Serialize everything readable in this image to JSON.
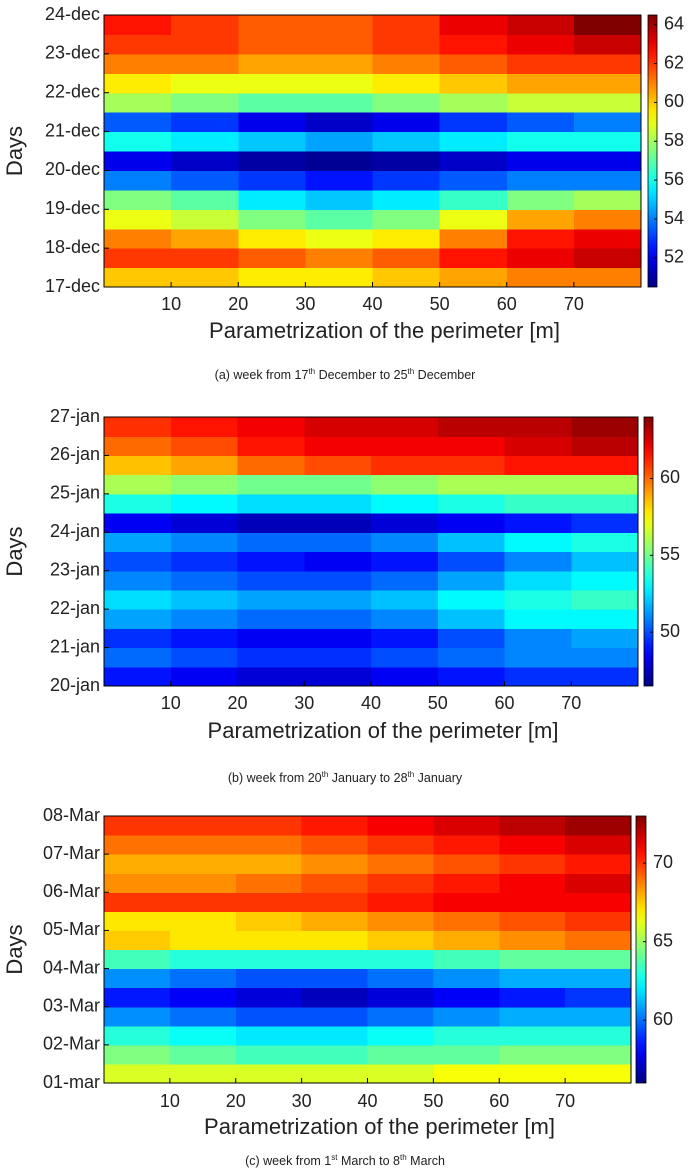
{
  "chart_data": [
    {
      "type": "heatmap",
      "xlabel": "Parametrization of the perimeter [m]",
      "ylabel": "Days",
      "caption": [
        "(a)  week from 17",
        "th",
        " December to 25",
        "th",
        " December"
      ],
      "colormap": "jet",
      "xlim": [
        0,
        80
      ],
      "xticks": [
        10,
        20,
        30,
        40,
        50,
        60,
        70
      ],
      "ylim": [
        0,
        7
      ],
      "yticks": [
        {
          "value": 0,
          "label": "17-dec"
        },
        {
          "value": 1,
          "label": "18-dec"
        },
        {
          "value": 2,
          "label": "19-dec"
        },
        {
          "value": 3,
          "label": "20-dec"
        },
        {
          "value": 4,
          "label": "21-dec"
        },
        {
          "value": 5,
          "label": "22-dec"
        },
        {
          "value": 6,
          "label": "23-dec"
        },
        {
          "value": 7,
          "label": "24-dec"
        }
      ],
      "xbins": [
        0,
        10,
        20,
        30,
        40,
        50,
        60,
        70,
        80
      ],
      "ybins": [
        0,
        0.5,
        1,
        1.5,
        2,
        2.5,
        3,
        3.5,
        4,
        4.5,
        5,
        5.5,
        6,
        6.5,
        7
      ],
      "clim": [
        50.5,
        64.5
      ],
      "cticks": [
        52,
        54,
        56,
        58,
        60,
        62,
        64
      ],
      "values": [
        [
          60,
          60,
          59.5,
          59.5,
          60,
          60.5,
          61,
          61
        ],
        [
          62,
          62,
          61.5,
          61,
          61.5,
          62.5,
          63,
          63.5
        ],
        [
          61,
          60.5,
          59.5,
          59,
          59.5,
          61,
          62.5,
          63
        ],
        [
          59,
          58.5,
          57.5,
          57,
          57.5,
          59,
          60.5,
          61
        ],
        [
          57.5,
          57,
          55.5,
          55,
          55.5,
          56.5,
          57.5,
          58
        ],
        [
          54,
          53.5,
          53,
          52.5,
          53,
          53.5,
          54,
          54
        ],
        [
          52,
          51.5,
          51,
          50.8,
          51,
          51.5,
          52,
          52
        ],
        [
          56,
          55.5,
          55,
          54.5,
          55,
          55.5,
          56,
          56
        ],
        [
          53.5,
          53,
          52,
          51.5,
          52,
          53,
          53.5,
          54
        ],
        [
          58,
          57.5,
          57,
          57,
          57.5,
          58,
          58.5,
          58.5
        ],
        [
          59.5,
          59,
          59,
          59,
          59.5,
          60,
          60.5,
          60.5
        ],
        [
          61,
          61,
          60.5,
          60.5,
          61,
          61.5,
          62,
          62
        ],
        [
          62,
          62,
          61.5,
          61.5,
          62,
          62.5,
          63,
          63.5
        ],
        [
          62.5,
          62,
          61.5,
          61.5,
          62,
          63,
          63.5,
          64.5
        ]
      ]
    },
    {
      "type": "heatmap",
      "xlabel": "Parametrization of the perimeter [m]",
      "ylabel": "Days",
      "caption": [
        "(b)  week from 20",
        "th",
        " January to 28",
        "th",
        " January"
      ],
      "colormap": "jet",
      "xlim": [
        0,
        80
      ],
      "xticks": [
        10,
        20,
        30,
        40,
        50,
        60,
        70
      ],
      "ylim": [
        0,
        7
      ],
      "yticks": [
        {
          "value": 0,
          "label": "20-jan"
        },
        {
          "value": 1,
          "label": "21-jan"
        },
        {
          "value": 2,
          "label": "22-jan"
        },
        {
          "value": 3,
          "label": "23-jan"
        },
        {
          "value": 4,
          "label": "24-jan"
        },
        {
          "value": 5,
          "label": "25-jan"
        },
        {
          "value": 6,
          "label": "26-jan"
        },
        {
          "value": 7,
          "label": "27-jan"
        }
      ],
      "xbins": [
        0,
        10,
        20,
        30,
        40,
        50,
        60,
        70,
        80
      ],
      "ybins": [
        0,
        0.5,
        1,
        1.5,
        2,
        2.5,
        3,
        3.5,
        4,
        4.5,
        5,
        5.5,
        6,
        6.5,
        7
      ],
      "clim": [
        46.5,
        64
      ],
      "cticks": [
        50,
        55,
        60
      ],
      "values": [
        [
          49,
          48.5,
          48,
          48,
          48.5,
          49,
          49.5,
          49.5
        ],
        [
          50.5,
          50,
          49.5,
          49.5,
          50,
          50.5,
          51,
          51
        ],
        [
          49.5,
          49,
          48.5,
          48.5,
          49,
          50,
          51,
          51.5
        ],
        [
          51.5,
          51,
          50.5,
          50.5,
          51,
          52,
          53,
          53
        ],
        [
          52.5,
          52,
          51.5,
          51.5,
          52,
          53,
          53.5,
          54
        ],
        [
          51,
          50.5,
          50,
          50,
          50.5,
          51.5,
          52.5,
          53
        ],
        [
          50,
          49.5,
          49,
          48.5,
          49,
          50,
          51,
          52
        ],
        [
          51.5,
          51,
          50.5,
          50.5,
          51,
          52,
          53,
          53.5
        ],
        [
          48.5,
          48,
          47.5,
          47.5,
          48,
          48.5,
          49,
          49.5
        ],
        [
          53.5,
          53,
          52.5,
          52.5,
          53,
          53.5,
          54,
          54
        ],
        [
          56,
          55.5,
          55,
          55,
          55.5,
          56,
          56,
          56
        ],
        [
          58.5,
          59,
          60,
          60.5,
          61,
          61,
          61.5,
          61.5
        ],
        [
          60,
          60.5,
          61.5,
          62,
          62,
          62,
          62.5,
          63
        ],
        [
          61,
          61.5,
          62,
          62.5,
          62.5,
          63,
          63,
          63.5
        ]
      ]
    },
    {
      "type": "heatmap",
      "xlabel": "Parametrization of the perimeter [m]",
      "ylabel": "Days",
      "caption": [
        "(c)  week from 1",
        "st",
        " March to 8",
        "th",
        " March"
      ],
      "colormap": "jet",
      "xlim": [
        0,
        80
      ],
      "xticks": [
        10,
        20,
        30,
        40,
        50,
        60,
        70
      ],
      "ylim": [
        0,
        7
      ],
      "yticks": [
        {
          "value": 0,
          "label": "01-mar"
        },
        {
          "value": 1,
          "label": "02-Mar"
        },
        {
          "value": 2,
          "label": "03-Mar"
        },
        {
          "value": 3,
          "label": "04-Mar"
        },
        {
          "value": 4,
          "label": "05-Mar"
        },
        {
          "value": 5,
          "label": "06-Mar"
        },
        {
          "value": 6,
          "label": "07-Mar"
        },
        {
          "value": 7,
          "label": "08-Mar"
        }
      ],
      "xbins": [
        0,
        10,
        20,
        30,
        40,
        50,
        60,
        70,
        80
      ],
      "ybins": [
        0,
        0.5,
        1,
        1.5,
        2,
        2.5,
        3,
        3.5,
        4,
        4.5,
        5,
        5.5,
        6,
        6.5,
        7
      ],
      "clim": [
        56,
        73
      ],
      "cticks": [
        60,
        65,
        70
      ],
      "values": [
        [
          66,
          66,
          66,
          66,
          66,
          66.5,
          66.5,
          66.5
        ],
        [
          64.5,
          64,
          63.5,
          63.5,
          64,
          64,
          64.5,
          64.5
        ],
        [
          63,
          62.5,
          62,
          62,
          62.5,
          63,
          63,
          63
        ],
        [
          60.5,
          60,
          59.5,
          59.5,
          60,
          60.5,
          61,
          61
        ],
        [
          58.5,
          58,
          57.5,
          57,
          57.5,
          58,
          58.5,
          59
        ],
        [
          60.5,
          60,
          59.5,
          59.5,
          60,
          60.5,
          61,
          61
        ],
        [
          63.5,
          63,
          63,
          63,
          63,
          63.5,
          64,
          64
        ],
        [
          67.5,
          67,
          67,
          67,
          67.5,
          68,
          68.5,
          69
        ],
        [
          67,
          67,
          67.5,
          68,
          68.5,
          69,
          69.5,
          70
        ],
        [
          70,
          70,
          70,
          70,
          70.5,
          71,
          71,
          71
        ],
        [
          68.5,
          68.5,
          69,
          69.5,
          70,
          70.5,
          71,
          71.5
        ],
        [
          68,
          68,
          68,
          68.5,
          69,
          69.5,
          70,
          70.5
        ],
        [
          69,
          69,
          69,
          69.5,
          70,
          70.5,
          71,
          71.5
        ],
        [
          70,
          70,
          70,
          70.5,
          71,
          71.5,
          72,
          72.5
        ]
      ]
    }
  ]
}
